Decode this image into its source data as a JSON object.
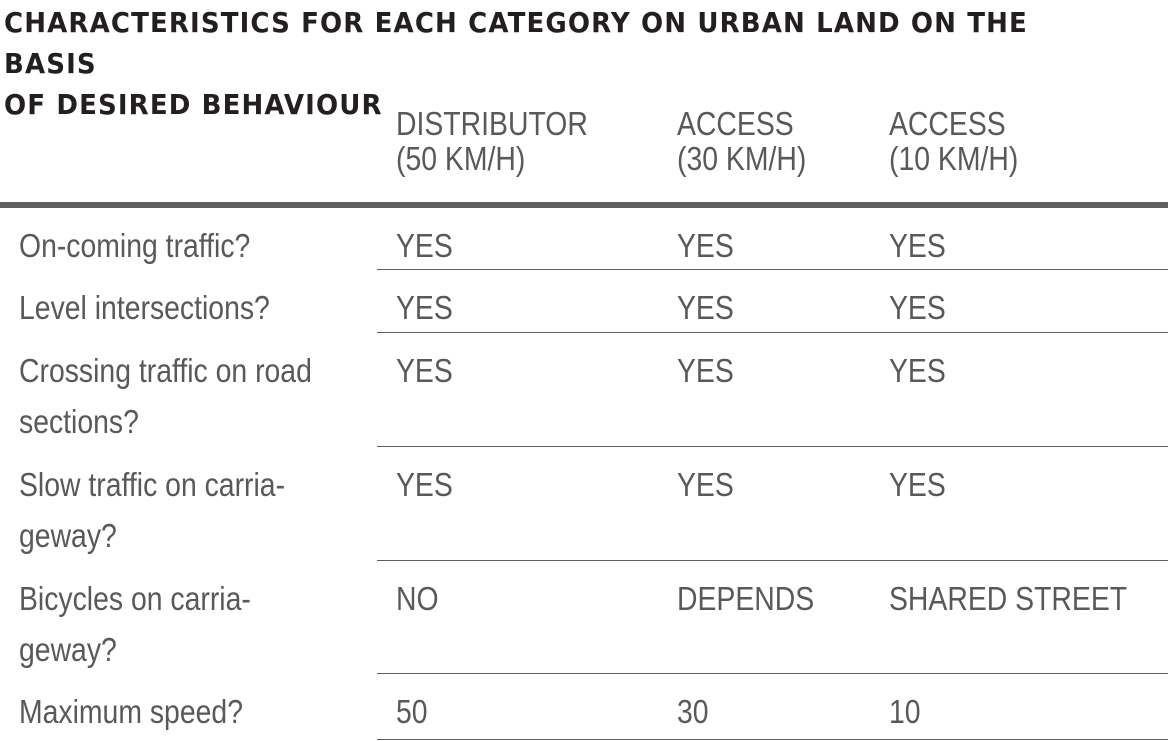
{
  "title_line1": "CHARACTERISTICS FOR EACH CATEGORY ON URBAN LAND ON THE BASIS",
  "title_line2": "OF DESIRED BEHAVIOUR",
  "columns": [
    {
      "line1": "DISTRIBUTOR",
      "line2": "(50 KM/H)"
    },
    {
      "line1": "ACCESS",
      "line2": "(30 KM/H)"
    },
    {
      "line1": "ACCESS",
      "line2": "(10 KM/H)"
    }
  ],
  "rows": [
    {
      "label_line1": "On-coming traffic?",
      "label_line2": "",
      "values": [
        "YES",
        "YES",
        "YES"
      ]
    },
    {
      "label_line1": "Level intersections?",
      "label_line2": "",
      "values": [
        "YES",
        "YES",
        "YES"
      ]
    },
    {
      "label_line1": "Crossing traffic on road",
      "label_line2": "sections?",
      "values": [
        "YES",
        "YES",
        "YES"
      ]
    },
    {
      "label_line1": "Slow traffic on carria-",
      "label_line2": "geway?",
      "values": [
        "YES",
        "YES",
        "YES"
      ]
    },
    {
      "label_line1": "Bicycles on carria-",
      "label_line2": "geway?",
      "values": [
        "NO",
        "DEPENDS",
        "SHARED STREET"
      ]
    },
    {
      "label_line1": "Maximum speed?",
      "label_line2": "",
      "values": [
        "50",
        "30",
        "10"
      ]
    }
  ]
}
